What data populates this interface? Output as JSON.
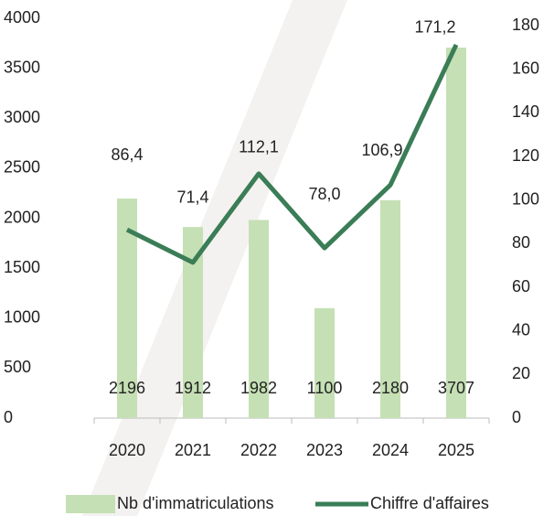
{
  "chart_data": {
    "type": "bar",
    "categories": [
      "2020",
      "2021",
      "2022",
      "2023",
      "2024",
      "2025"
    ],
    "series": [
      {
        "name": "Nb d'immatriculations",
        "color": "#c5e0b4",
        "values": [
          2196,
          1912,
          1982,
          1100,
          2180,
          3707
        ]
      },
      {
        "name": "Chiffre d'affaires",
        "type": "line",
        "axis": "y2",
        "color": "#3a7d56",
        "values": [
          86.4,
          71.4,
          112.1,
          78.0,
          106.9,
          171.2
        ],
        "value_labels": [
          "86,4",
          "71,4",
          "112,1",
          "78,0",
          "106,9",
          "171,2"
        ]
      }
    ],
    "ylim": [
      0,
      4000
    ],
    "yticks": [
      0,
      500,
      1000,
      1500,
      2000,
      2500,
      3000,
      3500,
      4000
    ],
    "y2lim": [
      0,
      180
    ],
    "y2ticks": [
      0,
      20,
      40,
      60,
      80,
      100,
      120,
      140,
      160,
      180
    ],
    "legend": "bottom"
  }
}
